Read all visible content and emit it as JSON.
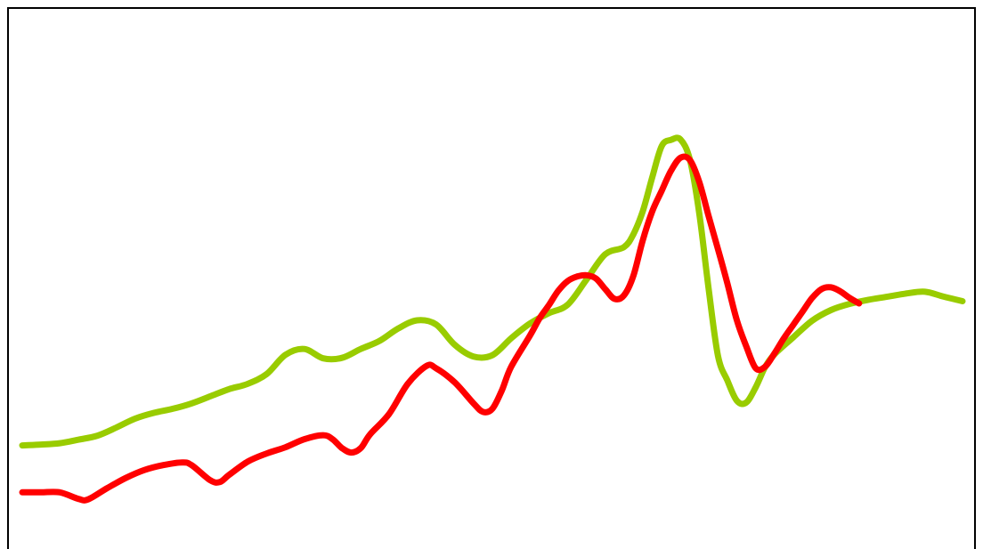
{
  "chart_data": {
    "type": "line",
    "title": "",
    "xlabel": "",
    "ylabel": "",
    "grid": false,
    "legend": "none",
    "xlim": [
      0,
      100
    ],
    "ylim": [
      0,
      100
    ],
    "series": [
      {
        "color": "#99cc00",
        "points": [
          [
            0,
            20
          ],
          [
            2,
            20.2
          ],
          [
            4,
            20.5
          ],
          [
            6,
            21.3
          ],
          [
            8,
            22.2
          ],
          [
            10,
            24
          ],
          [
            12,
            26
          ],
          [
            14,
            27.3
          ],
          [
            16,
            28.2
          ],
          [
            18,
            29.4
          ],
          [
            20,
            31
          ],
          [
            22,
            32.6
          ],
          [
            24,
            33.8
          ],
          [
            26,
            36
          ],
          [
            28,
            40.3
          ],
          [
            30,
            41.6
          ],
          [
            32,
            39.5
          ],
          [
            34,
            39.6
          ],
          [
            36,
            41.6
          ],
          [
            38,
            43.4
          ],
          [
            40,
            46.2
          ],
          [
            42,
            48
          ],
          [
            44,
            47.1
          ],
          [
            46,
            42.5
          ],
          [
            48,
            39.9
          ],
          [
            50,
            40.2
          ],
          [
            52,
            44
          ],
          [
            54,
            47.3
          ],
          [
            56,
            49.6
          ],
          [
            58,
            51.5
          ],
          [
            60,
            57.1
          ],
          [
            62,
            62.8
          ],
          [
            64,
            64.4
          ],
          [
            65,
            67.3
          ],
          [
            66,
            72.5
          ],
          [
            67,
            80
          ],
          [
            68,
            87
          ],
          [
            69,
            88.4
          ],
          [
            70,
            88.5
          ],
          [
            71,
            84
          ],
          [
            72,
            72
          ],
          [
            73,
            55
          ],
          [
            74,
            40
          ],
          [
            75,
            34.5
          ],
          [
            76,
            30
          ],
          [
            77,
            29.6
          ],
          [
            78,
            33
          ],
          [
            79,
            37.5
          ],
          [
            80,
            40.4
          ],
          [
            82,
            44.2
          ],
          [
            84,
            47.9
          ],
          [
            86,
            50.3
          ],
          [
            88,
            51.7
          ],
          [
            90,
            52.6
          ],
          [
            92,
            53.3
          ],
          [
            94,
            54
          ],
          [
            96,
            54.4
          ],
          [
            98,
            53.3
          ],
          [
            100,
            52.3
          ]
        ]
      },
      {
        "color": "#ff0000",
        "points": [
          [
            0,
            9.5
          ],
          [
            2,
            9.5
          ],
          [
            4,
            9.5
          ],
          [
            6,
            8
          ],
          [
            7,
            7.9
          ],
          [
            9,
            10.4
          ],
          [
            11,
            12.7
          ],
          [
            13,
            14.5
          ],
          [
            15,
            15.6
          ],
          [
            17,
            16.2
          ],
          [
            18,
            15.6
          ],
          [
            20,
            12.2
          ],
          [
            21,
            11.8
          ],
          [
            22,
            13.4
          ],
          [
            24,
            16.4
          ],
          [
            26,
            18.2
          ],
          [
            28,
            19.6
          ],
          [
            30,
            21.4
          ],
          [
            32,
            22.3
          ],
          [
            33,
            21.4
          ],
          [
            34,
            19.4
          ],
          [
            35,
            18.4
          ],
          [
            36,
            19.4
          ],
          [
            37,
            22.5
          ],
          [
            39,
            27
          ],
          [
            41,
            33.8
          ],
          [
            43,
            37.8
          ],
          [
            44,
            37.3
          ],
          [
            46,
            34.1
          ],
          [
            48,
            29.4
          ],
          [
            49,
            27.5
          ],
          [
            50,
            28.2
          ],
          [
            51,
            32.3
          ],
          [
            52,
            37.6
          ],
          [
            54,
            44.6
          ],
          [
            55,
            48.4
          ],
          [
            56,
            51.4
          ],
          [
            57,
            54.6
          ],
          [
            58,
            56.8
          ],
          [
            59,
            57.8
          ],
          [
            60,
            58.1
          ],
          [
            61,
            57.4
          ],
          [
            62,
            55
          ],
          [
            63,
            52.8
          ],
          [
            64,
            53.6
          ],
          [
            65,
            58
          ],
          [
            66,
            66
          ],
          [
            67,
            72.4
          ],
          [
            68,
            77
          ],
          [
            69,
            81.5
          ],
          [
            70,
            84.4
          ],
          [
            71,
            83.9
          ],
          [
            72,
            79
          ],
          [
            73,
            71.3
          ],
          [
            74,
            63.9
          ],
          [
            75,
            56.2
          ],
          [
            76,
            48
          ],
          [
            77,
            42.2
          ],
          [
            78,
            37.3
          ],
          [
            79,
            37.6
          ],
          [
            80,
            40.6
          ],
          [
            81,
            44
          ],
          [
            82,
            47
          ],
          [
            83,
            50
          ],
          [
            84,
            53
          ],
          [
            85,
            55
          ],
          [
            86,
            55.4
          ],
          [
            87,
            54.5
          ],
          [
            88,
            53
          ],
          [
            89,
            51.8
          ]
        ]
      }
    ]
  }
}
